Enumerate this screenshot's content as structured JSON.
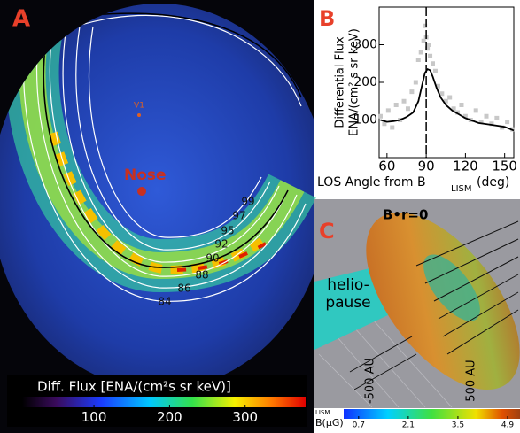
{
  "panel_a": {
    "letter": "A",
    "nose": "Nose",
    "v1": "V1",
    "contour_labels": [
      "99",
      "97",
      "95",
      "92",
      "90",
      "88",
      "86",
      "84"
    ],
    "colorbar": {
      "label": "Diff. Flux  [ENA/(cm²s sr keV)]",
      "lim": [
        5,
        380
      ],
      "ticks": [
        100,
        200,
        300
      ]
    }
  },
  "chart_data": {
    "type": "line",
    "letter": "B",
    "y_label": [
      "Differential Flux",
      "ENA/(cm² s sr keV)"
    ],
    "x_label": "LOS Angle from B",
    "x_label_sub": "LISM",
    "x_label_unit": "(deg)",
    "xlim": [
      54,
      157
    ],
    "xticks": [
      60,
      90,
      120,
      150
    ],
    "ylim": [
      0,
      400
    ],
    "yticks": [
      100,
      200,
      300
    ],
    "vline": 90,
    "series": [
      {
        "color": "#c8c8c8",
        "type": "scatter",
        "x": [
          55,
          58,
          61,
          64,
          67,
          70,
          73,
          76,
          79,
          82,
          84,
          86,
          88,
          89,
          90,
          91,
          92,
          93,
          95,
          97,
          99,
          102,
          105,
          108,
          111,
          114,
          117,
          120,
          124,
          128,
          132,
          136,
          140,
          144,
          148,
          152,
          156
        ],
        "values": [
          110,
          90,
          125,
          80,
          140,
          100,
          150,
          130,
          175,
          200,
          260,
          280,
          310,
          350,
          320,
          290,
          300,
          270,
          250,
          230,
          190,
          170,
          150,
          160,
          130,
          120,
          140,
          110,
          100,
          125,
          95,
          110,
          90,
          105,
          80,
          95,
          75
        ]
      },
      {
        "color": "#000000",
        "type": "line",
        "x": [
          55,
          60,
          65,
          70,
          75,
          80,
          84,
          87,
          89,
          91,
          93,
          95,
          98,
          101,
          105,
          110,
          115,
          120,
          130,
          140,
          150,
          157
        ],
        "values": [
          100,
          95,
          97,
          100,
          108,
          120,
          150,
          195,
          225,
          235,
          232,
          215,
          185,
          160,
          140,
          125,
          115,
          105,
          92,
          87,
          82,
          72
        ]
      }
    ]
  },
  "panel_c": {
    "letter": "C",
    "plane": "B•r=0",
    "helio": [
      "helio-",
      "pause"
    ],
    "axis_neg": "-500 AU",
    "axis_pos": "500 AU",
    "colorbar": {
      "label_sup": "LISM",
      "label": "B(μG)",
      "lim": [
        0.28,
        5.25
      ],
      "ticks": [
        0.7,
        2.1,
        3.5,
        4.9
      ]
    }
  }
}
